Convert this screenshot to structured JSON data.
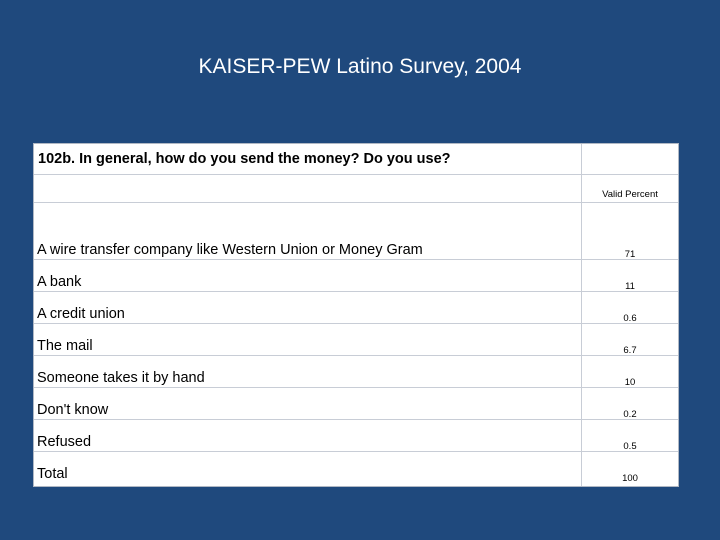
{
  "title": "KAISER-PEW Latino Survey, 2004",
  "table": {
    "question": "102b. In general, how do you send the money? Do you use?",
    "column_header": "Valid Percent",
    "rows": [
      {
        "label": "A wire transfer company like Western Union or Money Gram",
        "value": "71"
      },
      {
        "label": "A bank",
        "value": "11"
      },
      {
        "label": "A credit union",
        "value": "0.6"
      },
      {
        "label": "The mail",
        "value": "6.7"
      },
      {
        "label": "Someone takes it by hand",
        "value": "10"
      },
      {
        "label": "Don't know",
        "value": "0.2"
      },
      {
        "label": "Refused",
        "value": "0.5"
      },
      {
        "label": "Total",
        "value": "100"
      }
    ]
  }
}
